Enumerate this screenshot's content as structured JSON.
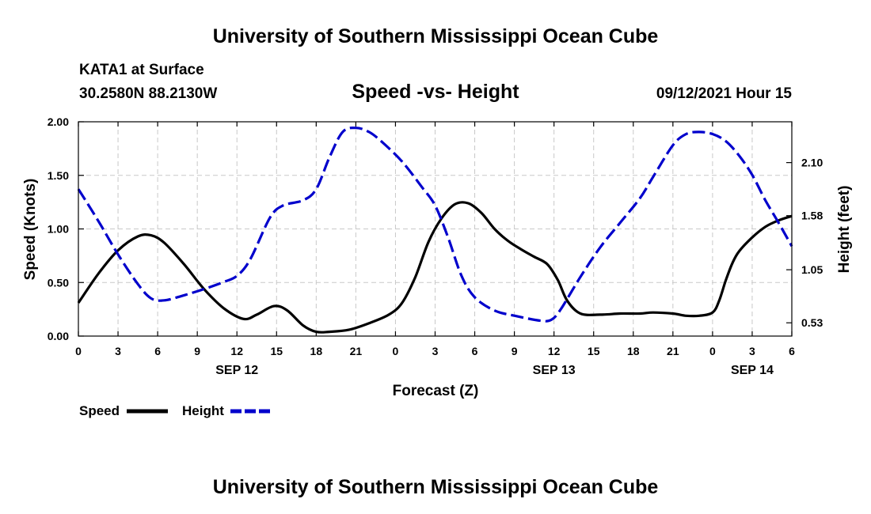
{
  "header": {
    "title": "University of Southern Mississippi Ocean Cube",
    "station": "KATA1 at Surface",
    "coords": "30.2580N  88.2130W",
    "chart_title": "Speed -vs- Height",
    "datetime": "09/12/2021 Hour 15"
  },
  "footer": {
    "title": "University of Southern Mississippi Ocean Cube"
  },
  "legend": {
    "speed_label": "Speed",
    "height_label": "Height"
  },
  "colors": {
    "speed": "#000000",
    "height": "#0000cc"
  },
  "chart_data": {
    "type": "line",
    "title": "Speed -vs- Height",
    "xlabel": "Forecast (Z)",
    "ylabel": "Speed (Knots)",
    "y2label": "Height (feet)",
    "x_range": [
      0,
      54
    ],
    "x_tick_values": [
      0,
      3,
      6,
      9,
      12,
      15,
      18,
      21,
      24,
      27,
      30,
      33,
      36,
      39,
      42,
      45,
      48,
      51,
      54
    ],
    "x_tick_labels": [
      "0",
      "3",
      "6",
      "9",
      "12",
      "15",
      "18",
      "21",
      "0",
      "3",
      "6",
      "9",
      "12",
      "15",
      "18",
      "21",
      "0",
      "3",
      "6"
    ],
    "date_labels": [
      {
        "x": 12,
        "label": "SEP 12"
      },
      {
        "x": 36,
        "label": "SEP 13"
      },
      {
        "x": 51,
        "label": "SEP 14"
      }
    ],
    "ylim": [
      0,
      2.0
    ],
    "y_ticks": [
      "0.00",
      "0.50",
      "1.00",
      "1.50",
      "2.00"
    ],
    "y2lim": [
      0.4,
      2.5
    ],
    "y2_ticks": [
      "0.53",
      "1.05",
      "1.58",
      "2.10"
    ],
    "grid": true,
    "series": [
      {
        "name": "Speed",
        "axis": "left",
        "x": [
          0,
          1.5,
          3,
          4.5,
          5.5,
          6.5,
          8,
          9.5,
          11,
          12.5,
          13.5,
          14.8,
          15.8,
          17,
          18,
          19,
          20.5,
          22,
          23.5,
          24.5,
          25.5,
          26.5,
          27.5,
          28.5,
          29.5,
          30.5,
          31.5,
          32.5,
          33.5,
          34.5,
          35.5,
          36.3,
          37,
          38,
          39.5,
          41,
          42.5,
          43.5,
          45,
          46,
          47,
          48,
          48.5,
          49,
          49.5,
          50,
          51,
          52,
          53,
          54
        ],
        "values": [
          0.31,
          0.58,
          0.8,
          0.93,
          0.94,
          0.87,
          0.67,
          0.44,
          0.26,
          0.16,
          0.2,
          0.28,
          0.24,
          0.1,
          0.04,
          0.04,
          0.06,
          0.12,
          0.2,
          0.31,
          0.55,
          0.88,
          1.1,
          1.23,
          1.24,
          1.15,
          1.0,
          0.89,
          0.81,
          0.74,
          0.67,
          0.52,
          0.33,
          0.21,
          0.2,
          0.21,
          0.21,
          0.22,
          0.21,
          0.19,
          0.19,
          0.22,
          0.33,
          0.52,
          0.68,
          0.79,
          0.92,
          1.02,
          1.08,
          1.12
        ]
      },
      {
        "name": "Height",
        "axis": "right",
        "x": [
          0,
          1.5,
          3,
          4.5,
          5.5,
          6.5,
          8,
          9.5,
          11,
          12,
          13,
          14.5,
          15.5,
          17,
          18,
          19,
          20,
          21,
          22,
          23,
          24.5,
          26,
          27,
          28,
          29,
          30,
          31.5,
          33,
          35,
          35.8,
          36.5,
          38,
          39.5,
          41,
          42.5,
          43.5,
          45,
          46,
          47,
          48,
          49,
          50,
          51,
          52,
          53,
          54
        ],
        "values": [
          1.84,
          1.53,
          1.2,
          0.91,
          0.77,
          0.75,
          0.8,
          0.86,
          0.93,
          0.99,
          1.15,
          1.56,
          1.68,
          1.73,
          1.84,
          2.15,
          2.4,
          2.44,
          2.4,
          2.3,
          2.11,
          1.86,
          1.68,
          1.36,
          0.99,
          0.78,
          0.65,
          0.6,
          0.55,
          0.56,
          0.66,
          0.98,
          1.27,
          1.51,
          1.75,
          1.96,
          2.27,
          2.38,
          2.4,
          2.38,
          2.31,
          2.17,
          1.98,
          1.73,
          1.51,
          1.28
        ]
      }
    ]
  }
}
